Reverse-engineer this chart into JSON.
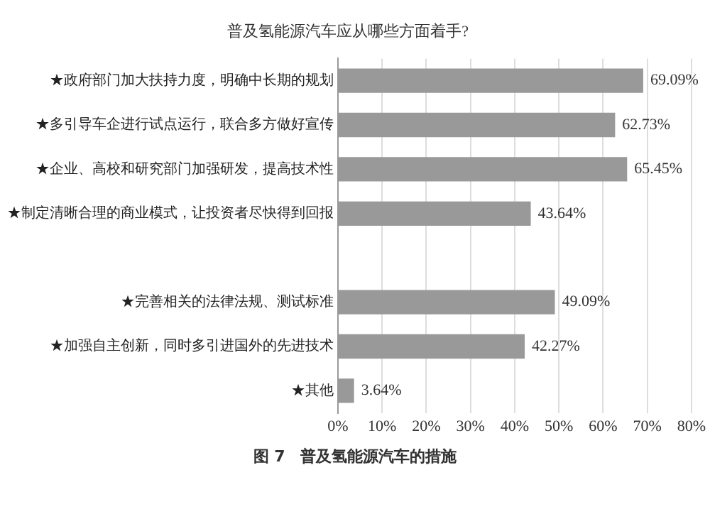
{
  "chart_data": {
    "type": "bar",
    "orientation": "horizontal",
    "title": "普及氢能源汽车应从哪些方面着手?",
    "categories": [
      "★政府部门加大扶持力度，明确中长期的规划",
      "★多引导车企进行试点运行，联合多方做好宣传",
      "★企业、高校和研究部门加强研发，提高技术性",
      "★制定清晰合理的商业模式，让投资者尽快得到回报",
      null,
      "★完善相关的法律法规、测试标准",
      "★加强自主创新，同时多引进国外的先进技术",
      "★其他"
    ],
    "values": [
      69.09,
      62.73,
      65.45,
      43.64,
      null,
      49.09,
      42.27,
      3.64
    ],
    "value_labels": [
      "69.09%",
      "62.73%",
      "65.45%",
      "43.64%",
      null,
      "49.09%",
      "42.27%",
      "3.64%"
    ],
    "color": "#999999",
    "xlim": [
      0,
      80
    ],
    "xticks": [
      {
        "value": 0,
        "label": "0%"
      },
      {
        "value": 10,
        "label": "10%"
      },
      {
        "value": 20,
        "label": "20%"
      },
      {
        "value": 30,
        "label": "30%"
      },
      {
        "value": 40,
        "label": "40%"
      },
      {
        "value": 50,
        "label": "50%"
      },
      {
        "value": 60,
        "label": "60%"
      },
      {
        "value": 70,
        "label": "70%"
      },
      {
        "value": 80,
        "label": "80%"
      }
    ],
    "grid": "x",
    "annotations": [
      "图 7　普及氢能源汽车的措施"
    ]
  }
}
